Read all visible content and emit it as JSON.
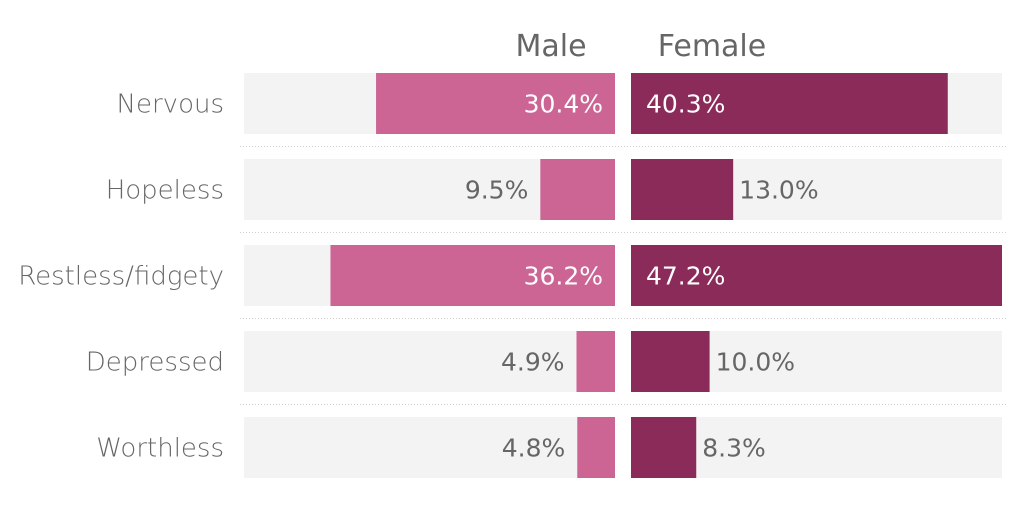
{
  "chart_data": {
    "type": "bar",
    "orientation": "horizontal-diverging",
    "title": "",
    "categories": [
      "Nervous",
      "Hopeless",
      "Restless/fidgety",
      "Depressed",
      "Worthless"
    ],
    "series": [
      {
        "name": "Male",
        "values": [
          30.4,
          9.5,
          36.2,
          4.9,
          4.8
        ],
        "labels": [
          "30.4%",
          "9.5%",
          "36.2%",
          "4.9%",
          "4.8%"
        ],
        "color": "#cc6594"
      },
      {
        "name": "Female",
        "values": [
          40.3,
          13.0,
          47.2,
          10.0,
          8.3
        ],
        "labels": [
          "40.3%",
          "13.0%",
          "47.2%",
          "10.0%",
          "8.3%"
        ],
        "color": "#8b2b59"
      }
    ],
    "xlim": [
      0,
      47.2
    ],
    "grid": false,
    "track_color": "#f3f3f3",
    "text_color": "#666666"
  }
}
